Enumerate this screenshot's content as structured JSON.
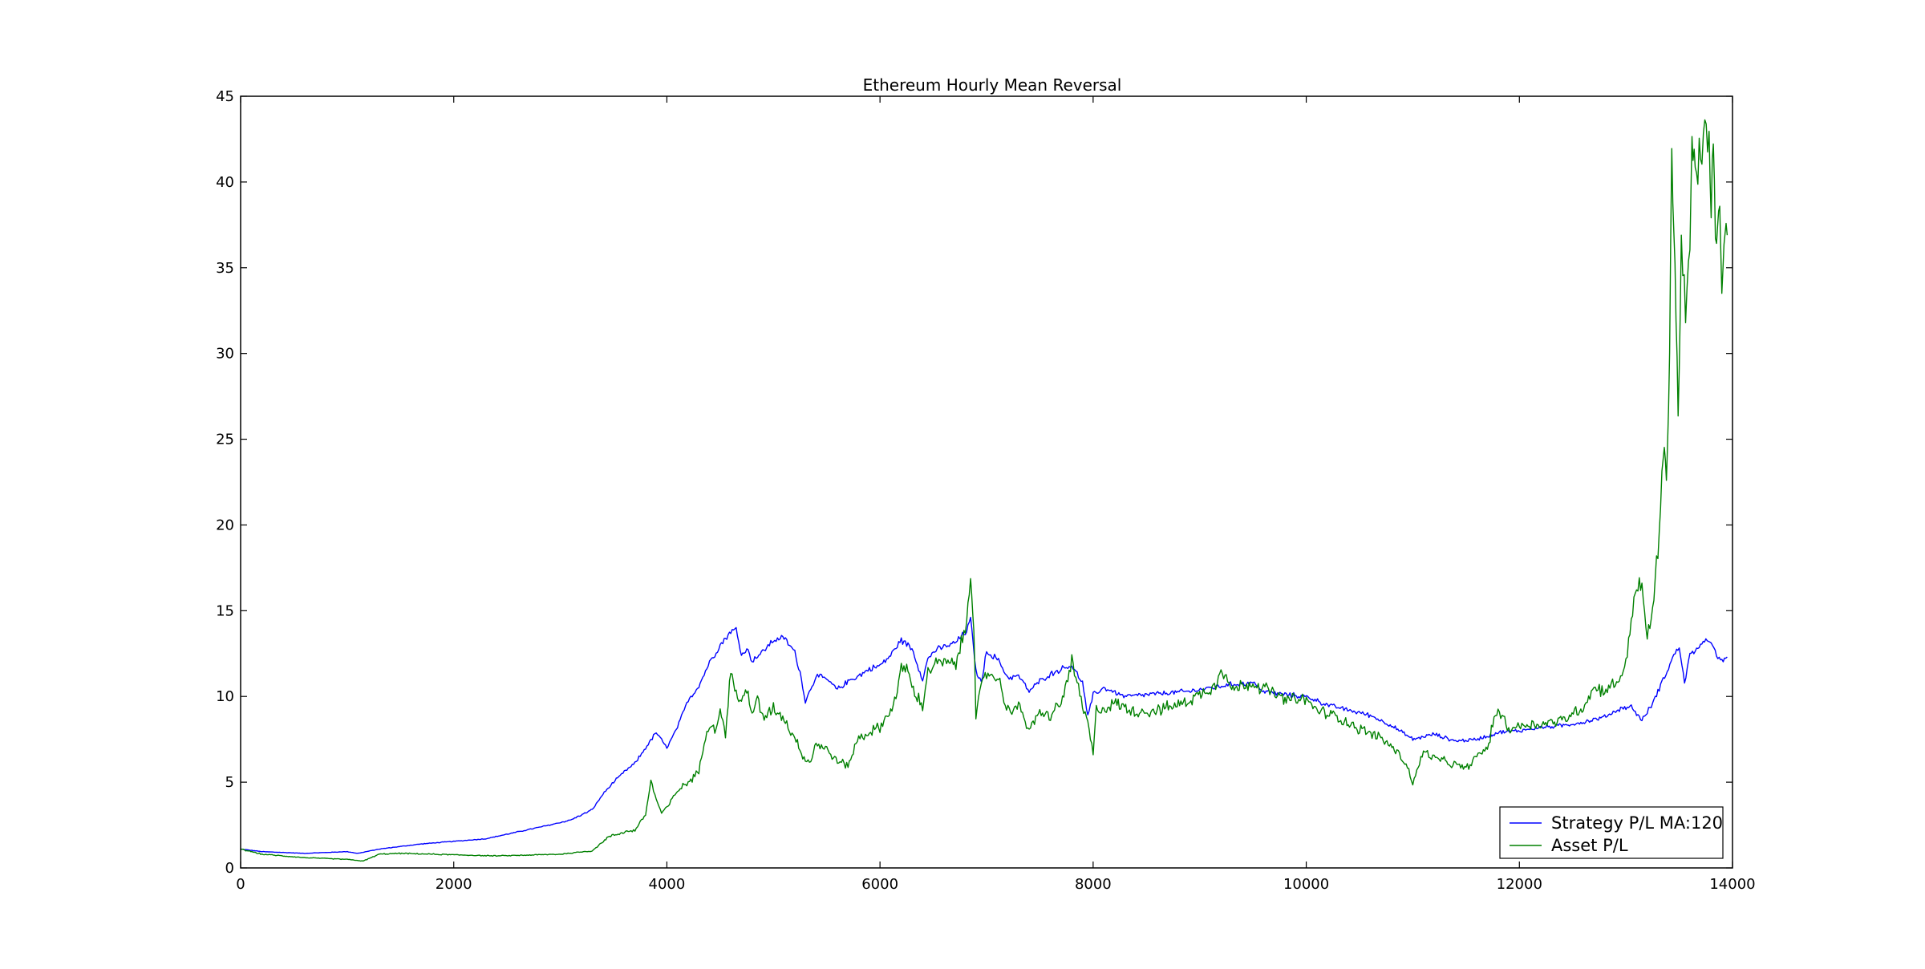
{
  "chart_data": {
    "type": "line",
    "title": "Ethereum Hourly Mean Reversal",
    "xlabel": "",
    "ylabel": "",
    "xlim": [
      0,
      14000
    ],
    "ylim": [
      0,
      45
    ],
    "xticks": [
      0,
      2000,
      4000,
      6000,
      8000,
      10000,
      12000,
      14000
    ],
    "yticks": [
      0,
      5,
      10,
      15,
      20,
      25,
      30,
      35,
      40,
      45
    ],
    "grid": false,
    "legend_position": "lower-right",
    "series": [
      {
        "name": "Strategy P/L MA:120",
        "color": "#0000ff",
        "points": [
          [
            0,
            1.1
          ],
          [
            200,
            0.95
          ],
          [
            400,
            0.9
          ],
          [
            600,
            0.85
          ],
          [
            800,
            0.9
          ],
          [
            1000,
            0.95
          ],
          [
            1100,
            0.85
          ],
          [
            1300,
            1.1
          ],
          [
            1500,
            1.25
          ],
          [
            1700,
            1.4
          ],
          [
            2000,
            1.55
          ],
          [
            2300,
            1.7
          ],
          [
            2600,
            2.1
          ],
          [
            2900,
            2.5
          ],
          [
            3100,
            2.8
          ],
          [
            3300,
            3.4
          ],
          [
            3400,
            4.3
          ],
          [
            3500,
            5.0
          ],
          [
            3600,
            5.6
          ],
          [
            3700,
            6.1
          ],
          [
            3800,
            7.0
          ],
          [
            3900,
            7.9
          ],
          [
            4000,
            7.0
          ],
          [
            4100,
            8.2
          ],
          [
            4200,
            9.8
          ],
          [
            4300,
            10.6
          ],
          [
            4400,
            12.0
          ],
          [
            4500,
            13.0
          ],
          [
            4600,
            13.8
          ],
          [
            4650,
            13.9
          ],
          [
            4700,
            12.4
          ],
          [
            4750,
            12.8
          ],
          [
            4800,
            12.1
          ],
          [
            4900,
            12.6
          ],
          [
            5000,
            13.3
          ],
          [
            5100,
            13.4
          ],
          [
            5200,
            12.6
          ],
          [
            5250,
            11.4
          ],
          [
            5300,
            9.7
          ],
          [
            5400,
            11.2
          ],
          [
            5500,
            11.0
          ],
          [
            5600,
            10.4
          ],
          [
            5700,
            10.9
          ],
          [
            5800,
            11.2
          ],
          [
            5900,
            11.6
          ],
          [
            6000,
            11.8
          ],
          [
            6100,
            12.4
          ],
          [
            6200,
            13.3
          ],
          [
            6300,
            12.8
          ],
          [
            6400,
            11.0
          ],
          [
            6450,
            12.2
          ],
          [
            6500,
            12.6
          ],
          [
            6600,
            12.9
          ],
          [
            6700,
            13.1
          ],
          [
            6800,
            13.7
          ],
          [
            6850,
            14.5
          ],
          [
            6900,
            11.5
          ],
          [
            6950,
            10.8
          ],
          [
            7000,
            12.6
          ],
          [
            7100,
            12.2
          ],
          [
            7200,
            11.1
          ],
          [
            7300,
            11.2
          ],
          [
            7400,
            10.3
          ],
          [
            7500,
            10.9
          ],
          [
            7600,
            11.3
          ],
          [
            7700,
            11.6
          ],
          [
            7800,
            11.8
          ],
          [
            7900,
            10.8
          ],
          [
            7950,
            8.8
          ],
          [
            8000,
            10.1
          ],
          [
            8100,
            10.5
          ],
          [
            8300,
            10.0
          ],
          [
            8500,
            10.1
          ],
          [
            8700,
            10.2
          ],
          [
            8900,
            10.3
          ],
          [
            9100,
            10.5
          ],
          [
            9300,
            10.7
          ],
          [
            9500,
            10.8
          ],
          [
            9600,
            10.3
          ],
          [
            9800,
            10.1
          ],
          [
            10000,
            10.0
          ],
          [
            10200,
            9.5
          ],
          [
            10400,
            9.2
          ],
          [
            10600,
            8.9
          ],
          [
            10800,
            8.3
          ],
          [
            11000,
            7.5
          ],
          [
            11200,
            7.8
          ],
          [
            11400,
            7.4
          ],
          [
            11600,
            7.5
          ],
          [
            11800,
            7.9
          ],
          [
            12000,
            8.0
          ],
          [
            12200,
            8.2
          ],
          [
            12400,
            8.3
          ],
          [
            12600,
            8.5
          ],
          [
            12800,
            8.8
          ],
          [
            12950,
            9.3
          ],
          [
            13050,
            9.4
          ],
          [
            13150,
            8.6
          ],
          [
            13250,
            9.6
          ],
          [
            13350,
            11.0
          ],
          [
            13450,
            12.4
          ],
          [
            13500,
            12.9
          ],
          [
            13550,
            10.8
          ],
          [
            13600,
            12.4
          ],
          [
            13700,
            13.0
          ],
          [
            13800,
            13.3
          ],
          [
            13850,
            12.3
          ],
          [
            13900,
            12.0
          ],
          [
            13950,
            12.3
          ]
        ]
      },
      {
        "name": "Asset P/L",
        "color": "#008000",
        "points": [
          [
            0,
            1.1
          ],
          [
            200,
            0.8
          ],
          [
            400,
            0.7
          ],
          [
            600,
            0.6
          ],
          [
            800,
            0.55
          ],
          [
            1000,
            0.5
          ],
          [
            1150,
            0.4
          ],
          [
            1300,
            0.8
          ],
          [
            1500,
            0.85
          ],
          [
            1800,
            0.8
          ],
          [
            2100,
            0.75
          ],
          [
            2400,
            0.7
          ],
          [
            2700,
            0.75
          ],
          [
            3000,
            0.8
          ],
          [
            3300,
            1.0
          ],
          [
            3450,
            1.8
          ],
          [
            3600,
            2.1
          ],
          [
            3700,
            2.2
          ],
          [
            3800,
            3.1
          ],
          [
            3850,
            5.1
          ],
          [
            3900,
            4.0
          ],
          [
            3950,
            3.2
          ],
          [
            4000,
            3.5
          ],
          [
            4100,
            4.5
          ],
          [
            4200,
            5.0
          ],
          [
            4300,
            5.6
          ],
          [
            4350,
            7.5
          ],
          [
            4400,
            8.5
          ],
          [
            4450,
            8.0
          ],
          [
            4500,
            9.3
          ],
          [
            4550,
            7.7
          ],
          [
            4600,
            11.5
          ],
          [
            4650,
            10.2
          ],
          [
            4700,
            9.6
          ],
          [
            4750,
            10.5
          ],
          [
            4800,
            9.0
          ],
          [
            4850,
            9.8
          ],
          [
            4900,
            8.7
          ],
          [
            5000,
            9.4
          ],
          [
            5100,
            8.7
          ],
          [
            5200,
            7.6
          ],
          [
            5300,
            6.3
          ],
          [
            5350,
            6.2
          ],
          [
            5400,
            7.3
          ],
          [
            5500,
            6.9
          ],
          [
            5600,
            6.2
          ],
          [
            5700,
            6.0
          ],
          [
            5800,
            7.6
          ],
          [
            5900,
            7.9
          ],
          [
            6000,
            8.2
          ],
          [
            6100,
            9.2
          ],
          [
            6150,
            10.0
          ],
          [
            6200,
            11.5
          ],
          [
            6250,
            11.8
          ],
          [
            6300,
            10.5
          ],
          [
            6400,
            9.4
          ],
          [
            6450,
            11.5
          ],
          [
            6500,
            11.8
          ],
          [
            6600,
            12.0
          ],
          [
            6700,
            11.8
          ],
          [
            6800,
            13.7
          ],
          [
            6850,
            17.3
          ],
          [
            6880,
            14.2
          ],
          [
            6900,
            8.8
          ],
          [
            6950,
            10.5
          ],
          [
            7000,
            11.3
          ],
          [
            7100,
            11.2
          ],
          [
            7200,
            9.2
          ],
          [
            7300,
            9.4
          ],
          [
            7400,
            8.1
          ],
          [
            7500,
            9.0
          ],
          [
            7600,
            8.9
          ],
          [
            7700,
            9.6
          ],
          [
            7800,
            12.0
          ],
          [
            7850,
            10.8
          ],
          [
            7900,
            9.3
          ],
          [
            7950,
            8.5
          ],
          [
            8000,
            6.6
          ],
          [
            8030,
            9.2
          ],
          [
            8100,
            9.3
          ],
          [
            8200,
            9.6
          ],
          [
            8400,
            9.1
          ],
          [
            8600,
            9.2
          ],
          [
            8800,
            9.5
          ],
          [
            9000,
            10.1
          ],
          [
            9150,
            10.7
          ],
          [
            9200,
            11.8
          ],
          [
            9300,
            10.4
          ],
          [
            9500,
            10.8
          ],
          [
            9600,
            10.5
          ],
          [
            9800,
            9.8
          ],
          [
            10000,
            9.8
          ],
          [
            10100,
            9.2
          ],
          [
            10300,
            8.8
          ],
          [
            10500,
            8.1
          ],
          [
            10700,
            7.6
          ],
          [
            10850,
            6.8
          ],
          [
            10950,
            5.9
          ],
          [
            11000,
            4.9
          ],
          [
            11100,
            6.8
          ],
          [
            11200,
            6.4
          ],
          [
            11400,
            6.0
          ],
          [
            11500,
            5.8
          ],
          [
            11600,
            6.5
          ],
          [
            11700,
            7.0
          ],
          [
            11750,
            8.3
          ],
          [
            11800,
            9.3
          ],
          [
            11900,
            8.1
          ],
          [
            12000,
            8.3
          ],
          [
            12200,
            8.4
          ],
          [
            12400,
            8.6
          ],
          [
            12600,
            9.4
          ],
          [
            12700,
            10.5
          ],
          [
            12800,
            10.4
          ],
          [
            12900,
            10.7
          ],
          [
            13000,
            11.8
          ],
          [
            13050,
            14.5
          ],
          [
            13100,
            16.6
          ],
          [
            13150,
            16.2
          ],
          [
            13200,
            13.4
          ],
          [
            13250,
            15.0
          ],
          [
            13300,
            18.5
          ],
          [
            13350,
            24.0
          ],
          [
            13380,
            23.0
          ],
          [
            13410,
            30.0
          ],
          [
            13430,
            41.9
          ],
          [
            13460,
            35.0
          ],
          [
            13490,
            26.0
          ],
          [
            13520,
            36.6
          ],
          [
            13560,
            32.0
          ],
          [
            13600,
            36.0
          ],
          [
            13620,
            42.6
          ],
          [
            13650,
            40.0
          ],
          [
            13700,
            41.5
          ],
          [
            13740,
            43.5
          ],
          [
            13780,
            41.8
          ],
          [
            13800,
            39.0
          ],
          [
            13820,
            41.4
          ],
          [
            13850,
            36.0
          ],
          [
            13880,
            38.2
          ],
          [
            13900,
            34.2
          ],
          [
            13930,
            36.6
          ],
          [
            13950,
            36.9
          ]
        ]
      }
    ]
  }
}
